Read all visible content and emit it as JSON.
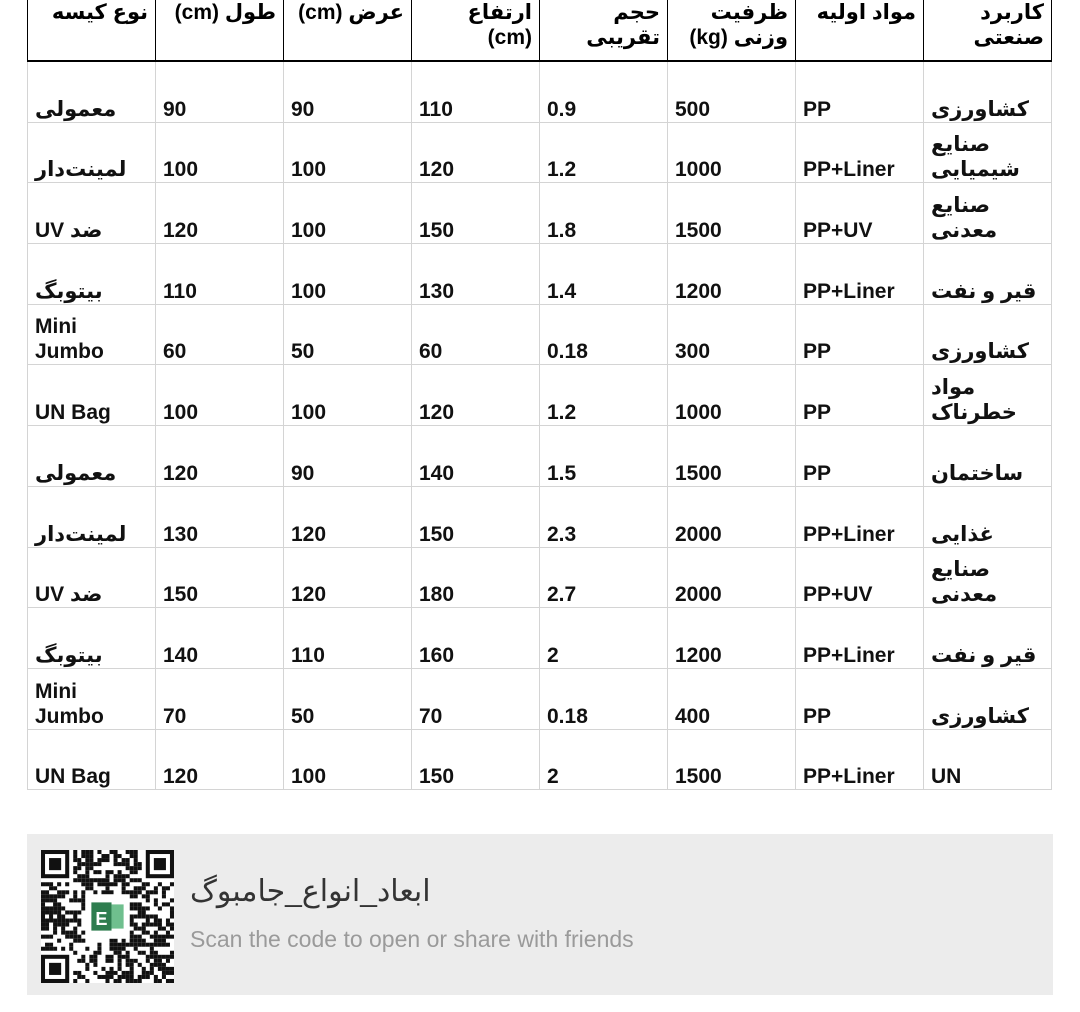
{
  "table": {
    "headers": [
      "نوع کیسه",
      "طول (cm)",
      "عرض (cm)",
      "ارتفاع (cm)",
      "حجم تقریبی",
      "ظرفیت وزنی (kg)",
      "مواد اولیه",
      "کاربرد صنعتی"
    ],
    "rows": [
      [
        "معمولی",
        "90",
        "90",
        "110",
        "0.9",
        "500",
        "PP",
        "کشاورزی"
      ],
      [
        "لمینت‌دار",
        "100",
        "100",
        "120",
        "1.2",
        "1000",
        "PP+Liner",
        "صنایع شیمیایی"
      ],
      [
        "ضد UV",
        "120",
        "100",
        "150",
        "1.8",
        "1500",
        "PP+UV",
        "صنایع معدنی"
      ],
      [
        "بیتوبگ",
        "110",
        "100",
        "130",
        "1.4",
        "1200",
        "PP+Liner",
        "قیر و نفت"
      ],
      [
        "Mini Jumbo",
        "60",
        "50",
        "60",
        "0.18",
        "300",
        "PP",
        "کشاورزی"
      ],
      [
        "UN Bag",
        "100",
        "100",
        "120",
        "1.2",
        "1000",
        "PP",
        "مواد خطرناک"
      ],
      [
        "معمولی",
        "120",
        "90",
        "140",
        "1.5",
        "1500",
        "PP",
        "ساختمان"
      ],
      [
        "لمینت‌دار",
        "130",
        "120",
        "150",
        "2.3",
        "2000",
        "PP+Liner",
        "غذایی"
      ],
      [
        "ضد UV",
        "150",
        "120",
        "180",
        "2.7",
        "2000",
        "PP+UV",
        "صنایع معدنی"
      ],
      [
        "بیتوبگ",
        "140",
        "110",
        "160",
        "2",
        "1200",
        "PP+Liner",
        "قیر و نفت"
      ],
      [
        "Mini Jumbo",
        "70",
        "50",
        "70",
        "0.18",
        "400",
        "PP",
        "کشاورزی"
      ],
      [
        "UN Bag",
        "120",
        "100",
        "150",
        "2",
        "1500",
        "PP+Liner",
        "UN"
      ]
    ]
  },
  "share_card": {
    "title": "ابعاد_انواع_جامبوگ",
    "subtitle": "Scan the code to open or share with friends",
    "qr_icon": "excel-app-icon",
    "accent": "#2e7d4f"
  }
}
